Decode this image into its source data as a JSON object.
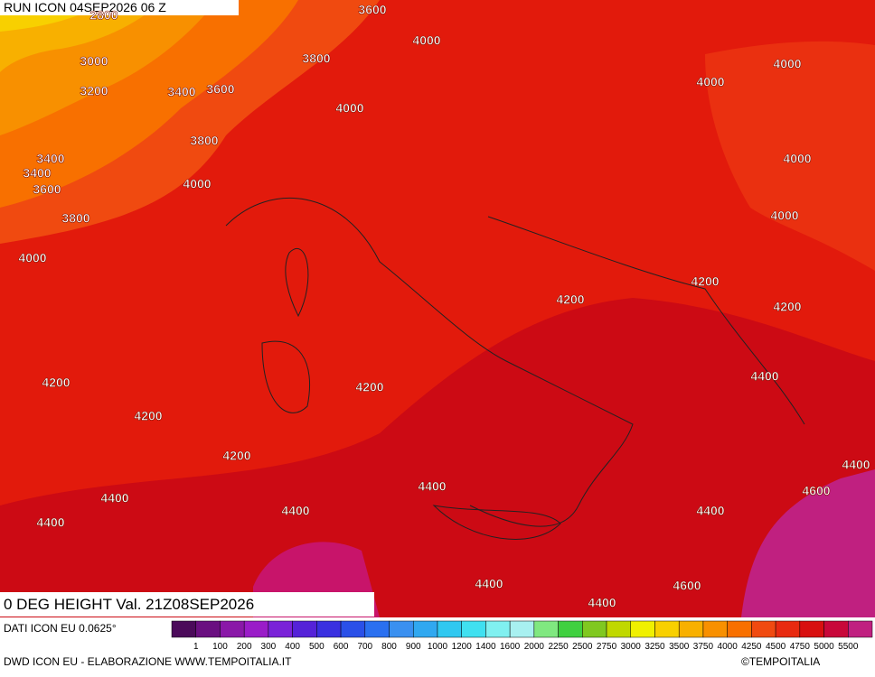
{
  "header": {
    "run": "RUN ICON 04SEP2026 06 Z"
  },
  "map": {
    "contour_labels": [
      "2800",
      "3600",
      "4000",
      "3000",
      "3800",
      "4000",
      "3200",
      "3400",
      "3600",
      "4000",
      "4000",
      "3800",
      "4000",
      "3400",
      "3400",
      "3600",
      "4000",
      "4000",
      "3800",
      "4000",
      "4200",
      "4200",
      "4200",
      "4400",
      "4200",
      "4200",
      "4200",
      "4200",
      "4400",
      "4600",
      "4400",
      "4400",
      "4400",
      "4400",
      "4400",
      "4400",
      "4600",
      "4400"
    ]
  },
  "footer": {
    "title": "0 DEG HEIGHT Val. 21Z08SEP2026",
    "source": "DATI ICON EU 0.0625°",
    "credit": "DWD ICON EU - ELABORAZIONE WWW.TEMPOITALIA.IT",
    "copyright": "©TEMPOITALIA"
  },
  "colorbar": {
    "labels": [
      "1",
      "100",
      "200",
      "300",
      "400",
      "500",
      "600",
      "700",
      "800",
      "900",
      "1000",
      "1200",
      "1400",
      "1600",
      "2000",
      "2250",
      "2500",
      "2750",
      "3000",
      "3250",
      "3500",
      "3750",
      "4000",
      "4250",
      "4500",
      "4750",
      "5000",
      "5500"
    ],
    "colors": [
      "#4b0a5a",
      "#6a0f80",
      "#8a18a8",
      "#9a1cc8",
      "#7a22d8",
      "#5522d8",
      "#3a30e0",
      "#2a50e8",
      "#2a70f0",
      "#3a90f0",
      "#30a8f0",
      "#30c8f0",
      "#40e0f0",
      "#80f0f0",
      "#a8f0f0",
      "#80e880",
      "#40d040",
      "#80c820",
      "#c0d800",
      "#f0f000",
      "#f8d000",
      "#f8b000",
      "#f89000",
      "#f87000",
      "#f04a10",
      "#e82a10",
      "#d81010",
      "#c8083a",
      "#c02080"
    ]
  }
}
